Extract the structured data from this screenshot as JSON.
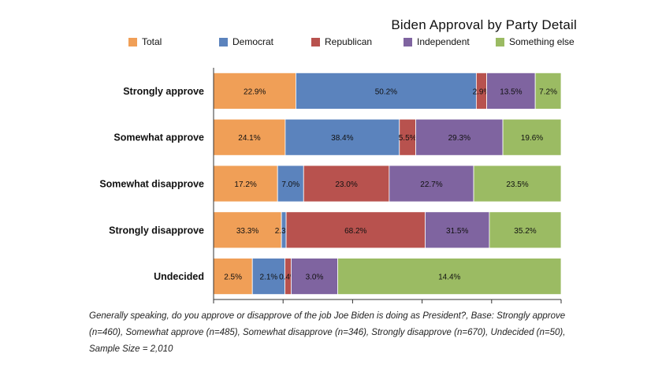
{
  "chart_data": {
    "type": "bar",
    "stacked": true,
    "orientation": "horizontal",
    "title": "Biden Approval by Party Detail",
    "categories": [
      "Strongly approve",
      "Somewhat approve",
      "Somewhat disapprove",
      "Strongly disapprove",
      "Undecided"
    ],
    "series": [
      {
        "name": "Total",
        "color": "#F09F57",
        "values": [
          22.9,
          24.1,
          17.2,
          33.3,
          2.5
        ]
      },
      {
        "name": "Democrat",
        "color": "#5B83BD",
        "values": [
          50.2,
          38.4,
          7.0,
          2.3,
          2.1
        ]
      },
      {
        "name": "Republican",
        "color": "#B8524E",
        "values": [
          2.9,
          5.5,
          23.0,
          68.2,
          0.4
        ]
      },
      {
        "name": "Independent",
        "color": "#7F64A0",
        "values": [
          13.5,
          29.3,
          22.7,
          31.5,
          3.0
        ]
      },
      {
        "name": "Something else",
        "color": "#9BBB63",
        "values": [
          7.2,
          19.6,
          23.5,
          35.2,
          14.4
        ]
      }
    ],
    "value_labels": [
      [
        "22.9%",
        "24.1%",
        "17.2%",
        "33.3%",
        "2.5%"
      ],
      [
        "50.2%",
        "38.4%",
        "7.0%",
        "2.3%",
        "2.1%"
      ],
      [
        "2.9%",
        "5.5%",
        "23.0%",
        "68.2%",
        "0.4%"
      ],
      [
        "13.5%",
        "29.3%",
        "22.7%",
        "31.5%",
        "3.0%"
      ],
      [
        "7.2%",
        "19.6%",
        "23.5%",
        "35.2%",
        "14.4%"
      ]
    ],
    "xlabel": "",
    "ylabel": "",
    "normalized": true,
    "legend_position": "top",
    "grid": false
  },
  "footnote": "Generally speaking, do you approve or disapprove of the job Joe Biden is doing as President?, Base: Strongly approve (n=460), Somewhat approve (n=485), Somewhat disapprove (n=346), Strongly disapprove (n=670), Undecided (n=50), Sample Size = 2,010"
}
